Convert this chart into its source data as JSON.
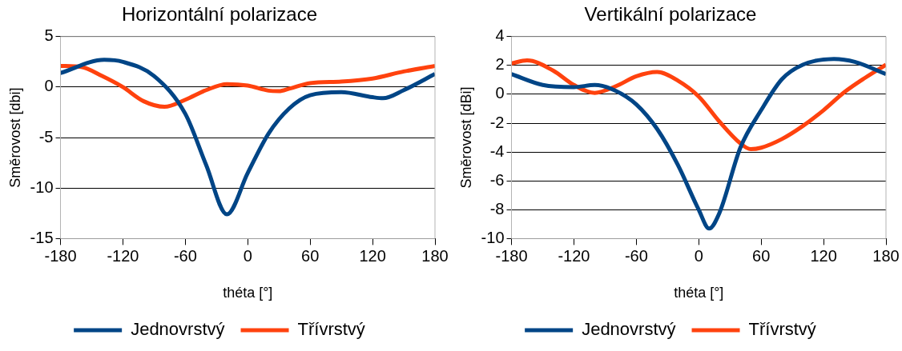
{
  "chart_data": [
    {
      "type": "line",
      "title": "Horizontální polarizace",
      "xlabel": "théta [°]",
      "ylabel": "Směrovost [dbi]",
      "xlim": [
        -180,
        180
      ],
      "xticks": [
        -180,
        -120,
        -60,
        0,
        60,
        120,
        180
      ],
      "ylim": [
        -15,
        5
      ],
      "yticks": [
        -15,
        -10,
        -5,
        0,
        5
      ],
      "grid": "y",
      "legend": "bottom",
      "marker": "none",
      "line_style": "solid",
      "series": [
        {
          "name": "Jednovrstvý",
          "color": "#004586",
          "x": [
            -180,
            -138,
            -120,
            -90,
            -60,
            -40,
            -20,
            0,
            20,
            40,
            60,
            90,
            120,
            130,
            150,
            180
          ],
          "values": [
            1.4,
            2.7,
            2.5,
            1.1,
            -2.65,
            -7.7,
            -12.6,
            -8.5,
            -4.6,
            -2.1,
            -0.8,
            -0.5,
            -1.0,
            -1.1,
            -0.3,
            1.3
          ]
        },
        {
          "name": "Třívrstvý",
          "color": "#ff420e",
          "x": [
            -180,
            -160,
            -140,
            -120,
            -100,
            -80,
            -60,
            -40,
            -20,
            0,
            20,
            30,
            40,
            60,
            90,
            120,
            150,
            180
          ],
          "values": [
            2.1,
            2.0,
            1.1,
            0,
            -1.4,
            -1.95,
            -1.25,
            -0.3,
            0.3,
            0.15,
            -0.35,
            -0.4,
            -0.15,
            0.4,
            0.55,
            0.85,
            1.55,
            2.1
          ]
        }
      ]
    },
    {
      "type": "line",
      "title": "Vertikální polarizace",
      "xlabel": "théta [°]",
      "ylabel": "Směrovost [dBi]",
      "xlim": [
        -180,
        180
      ],
      "xticks": [
        -180,
        -120,
        -60,
        0,
        60,
        120,
        180
      ],
      "ylim": [
        -10,
        4
      ],
      "yticks": [
        -10,
        -8,
        -6,
        -4,
        -2,
        0,
        2,
        4
      ],
      "grid": "y",
      "legend": "bottom",
      "marker": "none",
      "line_style": "solid",
      "series": [
        {
          "name": "Jednovrstvý",
          "color": "#004586",
          "x": [
            -180,
            -150,
            -120,
            -100,
            -80,
            -60,
            -40,
            -20,
            0,
            10,
            20,
            40,
            60,
            80,
            100,
            130,
            150,
            180
          ],
          "values": [
            1.4,
            0.65,
            0.5,
            0.65,
            0.25,
            -0.7,
            -2.4,
            -4.9,
            -8.0,
            -9.3,
            -8.2,
            -3.7,
            -1.1,
            1.05,
            2.05,
            2.45,
            2.25,
            1.4
          ]
        },
        {
          "name": "Třívrstvý",
          "color": "#ff420e",
          "x": [
            -180,
            -165,
            -140,
            -120,
            -100,
            -80,
            -60,
            -40,
            -20,
            0,
            20,
            40,
            50,
            60,
            80,
            100,
            120,
            140,
            160,
            180
          ],
          "values": [
            2.15,
            2.35,
            1.65,
            0.65,
            0.1,
            0.55,
            1.25,
            1.55,
            0.95,
            -0.15,
            -1.9,
            -3.4,
            -3.8,
            -3.7,
            -3.1,
            -2.2,
            -1.1,
            0.15,
            1.15,
            2.05
          ]
        }
      ]
    }
  ]
}
